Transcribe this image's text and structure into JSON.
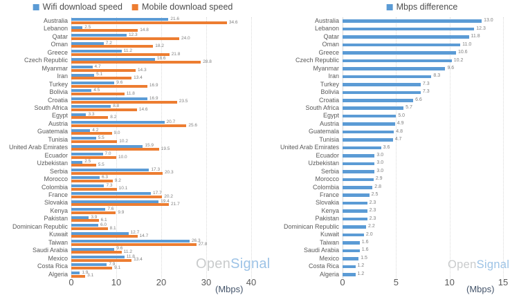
{
  "watermark": {
    "gray": "Open",
    "blue": "Signal"
  },
  "chart_data": [
    {
      "type": "bar",
      "orientation": "horizontal",
      "title": "",
      "legend_position": "top",
      "xlabel": "(Mbps)",
      "xlim": [
        0,
        40
      ],
      "xticks": [
        0,
        10,
        20,
        30,
        40
      ],
      "grid": "dotted-vertical-gridlines",
      "categories": [
        "Australia",
        "Lebanon",
        "Qatar",
        "Oman",
        "Greece",
        "Czech Republic",
        "Myanmar",
        "Iran",
        "Turkey",
        "Bolivia",
        "Croatia",
        "South Africa",
        "Egypt",
        "Austria",
        "Guatemala",
        "Tunisia",
        "United Arab Emirates",
        "Ecuador",
        "Uzbekistan",
        "Serbia",
        "Morocco",
        "Colombia",
        "France",
        "Slovakia",
        "Kenya",
        "Pakistan",
        "Dominican Republic",
        "Kuwait",
        "Taiwan",
        "Saudi Arabia",
        "Mexico",
        "Costa Rica",
        "Algeria"
      ],
      "series": [
        {
          "name": "Wifi download speed",
          "color": "#5B9BD5",
          "values": [
            21.6,
            2.5,
            12.3,
            7.2,
            11.2,
            18.6,
            4.7,
            5.1,
            9.6,
            4.5,
            16.9,
            8.8,
            3.3,
            20.7,
            4.2,
            5.5,
            15.9,
            7.0,
            2.5,
            17.3,
            6.3,
            7.3,
            17.7,
            19.4,
            7.6,
            3.9,
            6.0,
            12.7,
            26.3,
            9.6,
            11.8,
            7.9,
            1.9
          ]
        },
        {
          "name": "Mobile download speed",
          "color": "#ED7D31",
          "values": [
            34.6,
            14.8,
            24.0,
            18.2,
            21.8,
            28.8,
            14.3,
            13.4,
            16.9,
            11.8,
            23.5,
            14.6,
            8.2,
            25.6,
            9.0,
            10.2,
            19.5,
            10.0,
            5.5,
            20.3,
            9.2,
            10.1,
            20.2,
            21.7,
            9.9,
            6.1,
            8.1,
            14.7,
            27.8,
            11.2,
            13.4,
            9.1,
            3.1
          ]
        }
      ]
    },
    {
      "type": "bar",
      "orientation": "horizontal",
      "title": "",
      "legend_position": "top",
      "xlabel": "(Mbps)",
      "xlim": [
        0,
        15
      ],
      "xticks": [
        0,
        5,
        10,
        15
      ],
      "grid": "dotted-vertical-gridlines",
      "categories": [
        "Australia",
        "Lebanon",
        "Qatar",
        "Oman",
        "Greece",
        "Czech Republic",
        "Myanmar",
        "Iran",
        "Turkey",
        "Bolivia",
        "Croatia",
        "South Africa",
        "Egypt",
        "Austria",
        "Guatemala",
        "Tunisia",
        "United Arab Emirates",
        "Ecuador",
        "Uzbekistan",
        "Serbia",
        "Morocco",
        "Colombia",
        "France",
        "Slovakia",
        "Kenya",
        "Pakistan",
        "Dominican Republic",
        "Kuwait",
        "Taiwan",
        "Saudi Arabia",
        "Mexico",
        "Costa Rica",
        "Algeria"
      ],
      "series": [
        {
          "name": "Mbps difference",
          "color": "#5B9BD5",
          "values": [
            13.0,
            12.3,
            11.8,
            11.0,
            10.6,
            10.2,
            9.6,
            8.3,
            7.3,
            7.3,
            6.6,
            5.7,
            5.0,
            4.9,
            4.8,
            4.7,
            3.6,
            3.0,
            3.0,
            3.0,
            2.9,
            2.8,
            2.5,
            2.3,
            2.3,
            2.3,
            2.2,
            2.0,
            1.6,
            1.6,
            1.5,
            1.2,
            1.2
          ]
        }
      ]
    }
  ]
}
